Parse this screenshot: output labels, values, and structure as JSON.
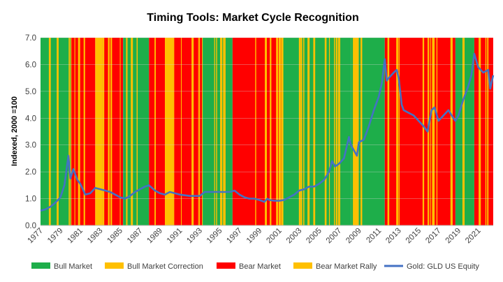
{
  "chart_data": {
    "type": "line",
    "title": "Timing Tools: Market Cycle Recognition",
    "ylabel": "Indexed, 2000 =100",
    "xlabel": "",
    "xlim": [
      1977.0,
      2022.5
    ],
    "ylim": [
      0,
      7
    ],
    "yticks": [
      "0.0",
      "1.0",
      "2.0",
      "3.0",
      "4.0",
      "5.0",
      "6.0",
      "7.0"
    ],
    "xticks": [
      "1977",
      "1979",
      "1981",
      "1983",
      "1985",
      "1987",
      "1989",
      "1991",
      "1993",
      "1995",
      "1997",
      "1999",
      "2001",
      "2003",
      "2005",
      "2007",
      "2009",
      "2011",
      "2013",
      "2015",
      "2017",
      "2019",
      "2021"
    ],
    "legend_position": "bottom",
    "regimes": [
      {
        "name": "Bull Market",
        "color": "#1EAE4A"
      },
      {
        "name": "Bull Market Correction",
        "color": "#FFC000"
      },
      {
        "name": "Bear Market",
        "color": "#FF0000"
      },
      {
        "name": "Bear Market Rally",
        "color": "#FFC000"
      }
    ],
    "regime_periods": [
      {
        "start": 1977.0,
        "end": 1980.1,
        "regime": "Bull Market"
      },
      {
        "start": 1980.1,
        "end": 1982.5,
        "regime": "Bear Market"
      },
      {
        "start": 1982.5,
        "end": 1983.2,
        "regime": "Bear Market Rally"
      },
      {
        "start": 1983.2,
        "end": 1985.3,
        "regime": "Bear Market"
      },
      {
        "start": 1985.3,
        "end": 1987.9,
        "regime": "Bull Market"
      },
      {
        "start": 1987.9,
        "end": 1989.5,
        "regime": "Bear Market"
      },
      {
        "start": 1989.5,
        "end": 1990.3,
        "regime": "Bear Market Rally"
      },
      {
        "start": 1990.3,
        "end": 1993.3,
        "regime": "Bear Market"
      },
      {
        "start": 1993.3,
        "end": 1996.3,
        "regime": "Bull Market"
      },
      {
        "start": 1996.3,
        "end": 2001.2,
        "regime": "Bear Market"
      },
      {
        "start": 2001.2,
        "end": 2008.2,
        "regime": "Bull Market"
      },
      {
        "start": 2008.2,
        "end": 2008.9,
        "regime": "Bull Market Correction"
      },
      {
        "start": 2008.9,
        "end": 2011.6,
        "regime": "Bull Market"
      },
      {
        "start": 2011.6,
        "end": 2015.9,
        "regime": "Bear Market"
      },
      {
        "start": 2015.9,
        "end": 2016.8,
        "regime": "Bear Market Rally"
      },
      {
        "start": 2016.8,
        "end": 2018.7,
        "regime": "Bear Market"
      },
      {
        "start": 2018.7,
        "end": 2020.6,
        "regime": "Bull Market"
      },
      {
        "start": 2020.6,
        "end": 2022.5,
        "regime": "Bear Market"
      }
    ],
    "series": [
      {
        "name": "Gold: GLD US Equity",
        "color": "#4472C4",
        "x": [
          1977.0,
          1977.5,
          1978.0,
          1978.5,
          1979.0,
          1979.4,
          1979.8,
          1980.0,
          1980.3,
          1980.7,
          1981.0,
          1981.5,
          1982.0,
          1982.5,
          1983.0,
          1983.5,
          1984.0,
          1984.5,
          1985.0,
          1985.5,
          1986.0,
          1986.5,
          1987.0,
          1987.5,
          1987.9,
          1988.5,
          1989.0,
          1989.5,
          1990.0,
          1990.5,
          1991.0,
          1992.0,
          1993.0,
          1993.5,
          1994.0,
          1995.0,
          1996.0,
          1996.5,
          1997.0,
          1997.5,
          1998.0,
          1998.5,
          1999.0,
          1999.5,
          1999.8,
          2000.0,
          2000.5,
          2001.0,
          2001.5,
          2002.0,
          2002.5,
          2003.0,
          2003.5,
          2004.0,
          2004.5,
          2005.0,
          2005.5,
          2006.0,
          2006.3,
          2006.6,
          2007.0,
          2007.5,
          2008.0,
          2008.2,
          2008.8,
          2009.0,
          2009.5,
          2010.0,
          2010.5,
          2011.0,
          2011.3,
          2011.6,
          2011.8,
          2012.0,
          2012.5,
          2012.8,
          2013.0,
          2013.3,
          2013.5,
          2014.0,
          2014.5,
          2015.0,
          2015.5,
          2015.9,
          2016.3,
          2016.6,
          2017.0,
          2017.5,
          2018.0,
          2018.5,
          2018.7,
          2019.0,
          2019.5,
          2020.0,
          2020.3,
          2020.6,
          2021.0,
          2021.5,
          2022.0,
          2022.2,
          2022.5
        ],
        "values": [
          0.55,
          0.6,
          0.7,
          0.85,
          1.05,
          1.5,
          2.6,
          1.75,
          2.1,
          1.7,
          1.55,
          1.15,
          1.2,
          1.4,
          1.35,
          1.3,
          1.25,
          1.15,
          1.05,
          1.0,
          1.1,
          1.25,
          1.35,
          1.45,
          1.5,
          1.3,
          1.2,
          1.15,
          1.25,
          1.2,
          1.15,
          1.1,
          1.1,
          1.25,
          1.25,
          1.25,
          1.25,
          1.3,
          1.15,
          1.05,
          1.0,
          1.0,
          0.95,
          0.88,
          1.0,
          0.95,
          0.92,
          0.92,
          0.95,
          1.05,
          1.15,
          1.3,
          1.35,
          1.45,
          1.45,
          1.55,
          1.7,
          2.0,
          2.4,
          2.2,
          2.3,
          2.5,
          3.3,
          3.0,
          2.6,
          3.1,
          3.2,
          3.7,
          4.3,
          4.8,
          5.3,
          6.2,
          5.4,
          5.5,
          5.7,
          5.8,
          5.5,
          4.5,
          4.3,
          4.2,
          4.1,
          3.9,
          3.7,
          3.5,
          4.3,
          4.4,
          3.9,
          4.1,
          4.3,
          4.0,
          3.9,
          4.1,
          4.7,
          5.2,
          5.6,
          6.4,
          5.9,
          5.7,
          5.8,
          5.1,
          5.6
        ]
      }
    ]
  }
}
